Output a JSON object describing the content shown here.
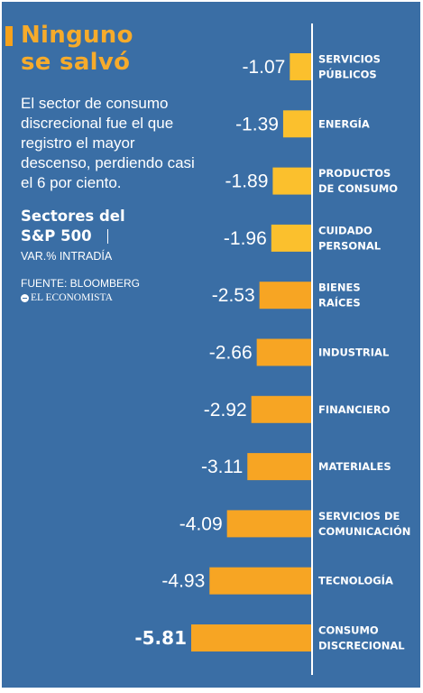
{
  "header": {
    "title": "Ninguno\nse salvó",
    "description": "El sector de consumo discrecional fue el que registro el mayor descenso, perdiendo casi el 6 por ciento.",
    "sectors_title": "Sectores del\nS&P 500",
    "unit_label": "VAR.% INTRADÍA",
    "source": "FUENTE: BLOOMBERG",
    "publisher": "EL ECONOMISTA"
  },
  "colors": {
    "background": "#3a6ea5",
    "title": "#f6ab2b",
    "bar_light": "#fbc02d",
    "bar_dark": "#f7a523",
    "text": "#ffffff"
  },
  "chart_data": {
    "type": "bar",
    "orientation": "horizontal",
    "categories": [
      [
        "SERVICIOS",
        "PÚBLICOS"
      ],
      [
        "ENERGÍA"
      ],
      [
        "PRODUCTOS",
        "DE CONSUMO"
      ],
      [
        "CUIDADO",
        "PERSONAL"
      ],
      [
        "BIENES",
        "RAÍCES"
      ],
      [
        "INDUSTRIAL"
      ],
      [
        "FINANCIERO"
      ],
      [
        "MATERIALES"
      ],
      [
        "SERVICIOS DE",
        "COMUNICACIÓN"
      ],
      [
        "TECNOLOGÍA"
      ],
      [
        "CONSUMO",
        "DISCRECIONAL"
      ]
    ],
    "values": [
      -1.07,
      -1.39,
      -1.89,
      -1.96,
      -2.53,
      -2.66,
      -2.92,
      -3.11,
      -4.09,
      -4.93,
      -5.81
    ],
    "value_labels": [
      "-1.07",
      "-1.39",
      "-1.89",
      "-1.96",
      "-2.53",
      "-2.66",
      "-2.92",
      "-3.11",
      "-4.09",
      "-4.93",
      "-5.81"
    ],
    "xlim": [
      -5.81,
      0
    ],
    "grid": false,
    "legend": "none"
  }
}
